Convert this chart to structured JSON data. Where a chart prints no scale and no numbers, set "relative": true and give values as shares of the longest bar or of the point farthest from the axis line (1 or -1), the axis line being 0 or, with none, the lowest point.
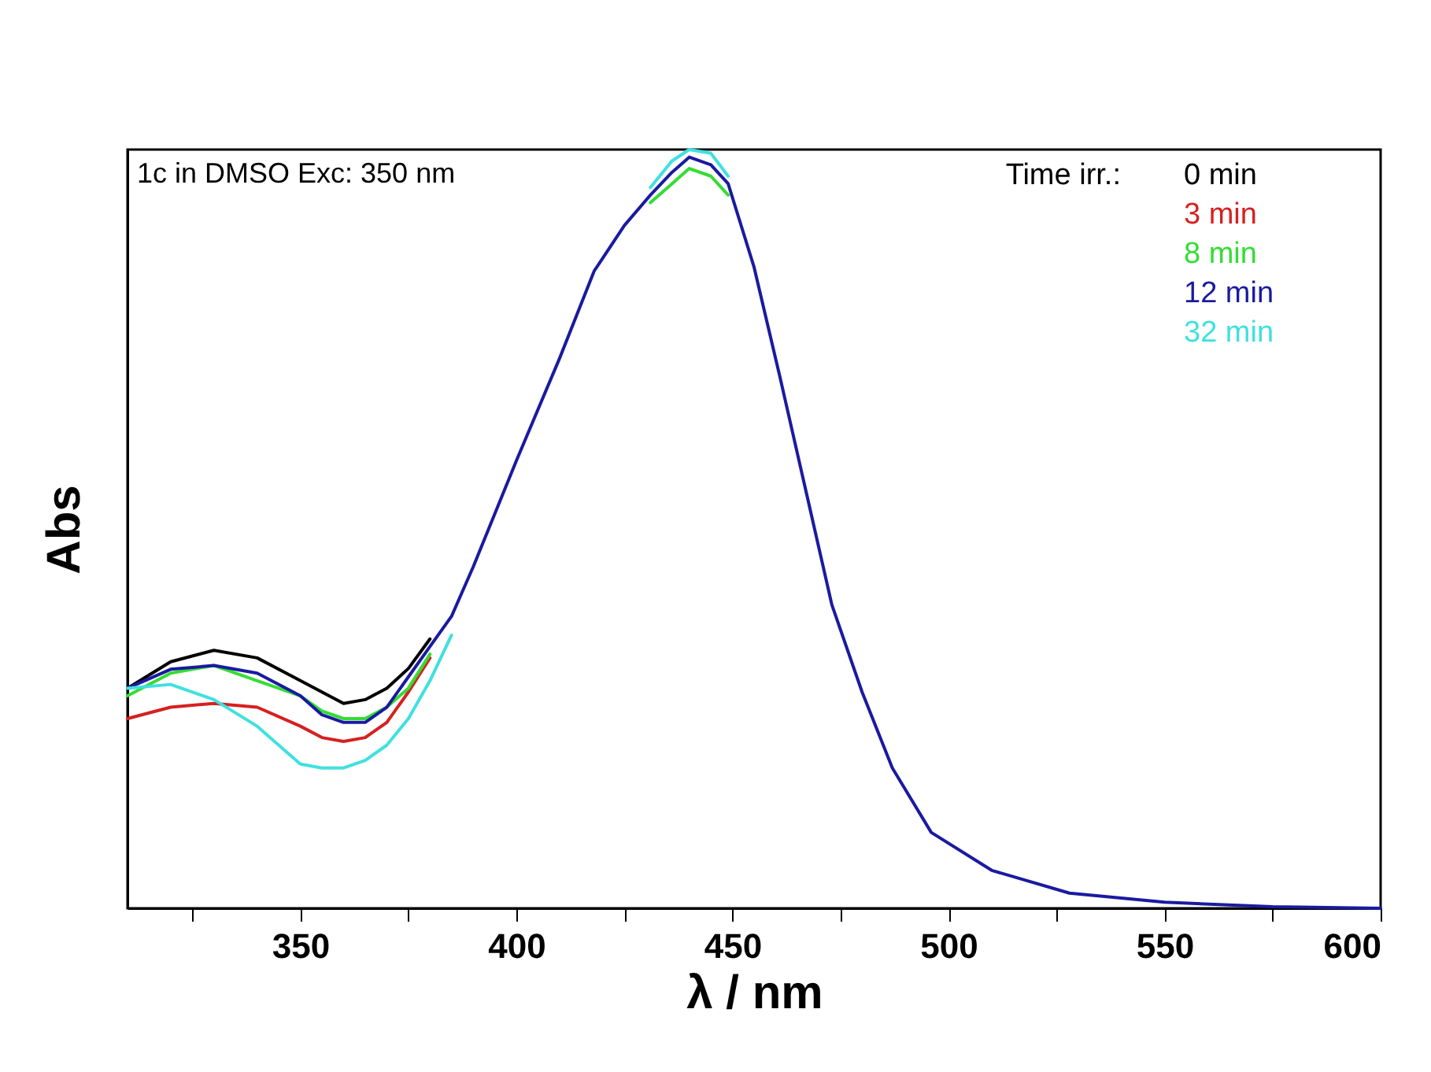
{
  "chart_data": {
    "type": "line",
    "relative": true,
    "xlabel": "λ / nm",
    "ylabel": "Abs",
    "legend_title": "Time irr.:",
    "legend": "top right",
    "annotations": [
      "1c in DMSO Exc: 350 nm"
    ],
    "xlim": [
      310,
      600
    ],
    "xticks": [
      {
        "value": 325,
        "label": null
      },
      350,
      {
        "value": 375,
        "label": null
      },
      400,
      {
        "value": 425,
        "label": null
      },
      450,
      {
        "value": 475,
        "label": null
      },
      500,
      {
        "value": 525,
        "label": null
      },
      550,
      {
        "value": 575,
        "label": null
      },
      600
    ],
    "x": [
      310,
      320,
      330,
      340,
      350,
      355,
      360,
      365,
      370,
      375,
      380,
      385,
      390,
      400,
      410,
      418,
      425,
      431,
      436,
      440,
      445,
      449,
      455,
      461,
      467,
      473,
      480,
      487,
      496,
      510,
      528,
      550,
      575,
      600
    ],
    "line_style": "solid",
    "grid": false,
    "series": [
      {
        "name": "0 min",
        "color": "#000000",
        "values": [
          0.29,
          0.325,
          0.34,
          0.33,
          0.3,
          0.285,
          0.27,
          0.275,
          0.29,
          0.316,
          0.355,
          null,
          null,
          null,
          null,
          null,
          null,
          null,
          null,
          null,
          null,
          null,
          null,
          null,
          null,
          null,
          null,
          null,
          null,
          null,
          null,
          null,
          null,
          null
        ]
      },
      {
        "name": "3 min",
        "color": "#d62020",
        "values": [
          0.25,
          0.265,
          0.27,
          0.265,
          0.24,
          0.225,
          0.22,
          0.225,
          0.245,
          0.285,
          0.33,
          null,
          null,
          null,
          null,
          null,
          null,
          null,
          null,
          null,
          null,
          null,
          null,
          null,
          null,
          null,
          null,
          null,
          null,
          null,
          null,
          null,
          null,
          null
        ]
      },
      {
        "name": "8 min",
        "color": "#33dd33",
        "values": [
          0.28,
          0.31,
          0.32,
          0.3,
          0.28,
          0.26,
          0.25,
          0.25,
          0.265,
          0.29,
          0.335,
          null,
          null,
          null,
          null,
          null,
          null,
          0.93,
          0.955,
          0.975,
          0.965,
          0.94,
          null,
          null,
          null,
          null,
          null,
          null,
          null,
          null,
          null,
          null,
          null,
          null
        ]
      },
      {
        "name": "12 min",
        "color": "#1a1aa0",
        "values": [
          0.29,
          0.315,
          0.32,
          0.31,
          0.28,
          0.255,
          0.245,
          0.245,
          0.265,
          0.305,
          0.345,
          0.385,
          0.45,
          0.59,
          0.725,
          0.84,
          0.9,
          0.94,
          0.97,
          0.99,
          0.98,
          0.955,
          0.845,
          0.7,
          0.55,
          0.4,
          0.285,
          0.185,
          0.1,
          0.05,
          0.02,
          0.008,
          0.002,
          0
        ]
      },
      {
        "name": "32 min",
        "color": "#40e0e0",
        "values": [
          0.29,
          0.295,
          0.275,
          0.24,
          0.19,
          0.185,
          0.185,
          0.195,
          0.215,
          0.25,
          0.3,
          0.36,
          null,
          null,
          null,
          null,
          null,
          0.95,
          0.985,
          1.0,
          0.995,
          0.965,
          null,
          null,
          null,
          null,
          null,
          null,
          null,
          null,
          null,
          null,
          null,
          null
        ]
      }
    ]
  }
}
